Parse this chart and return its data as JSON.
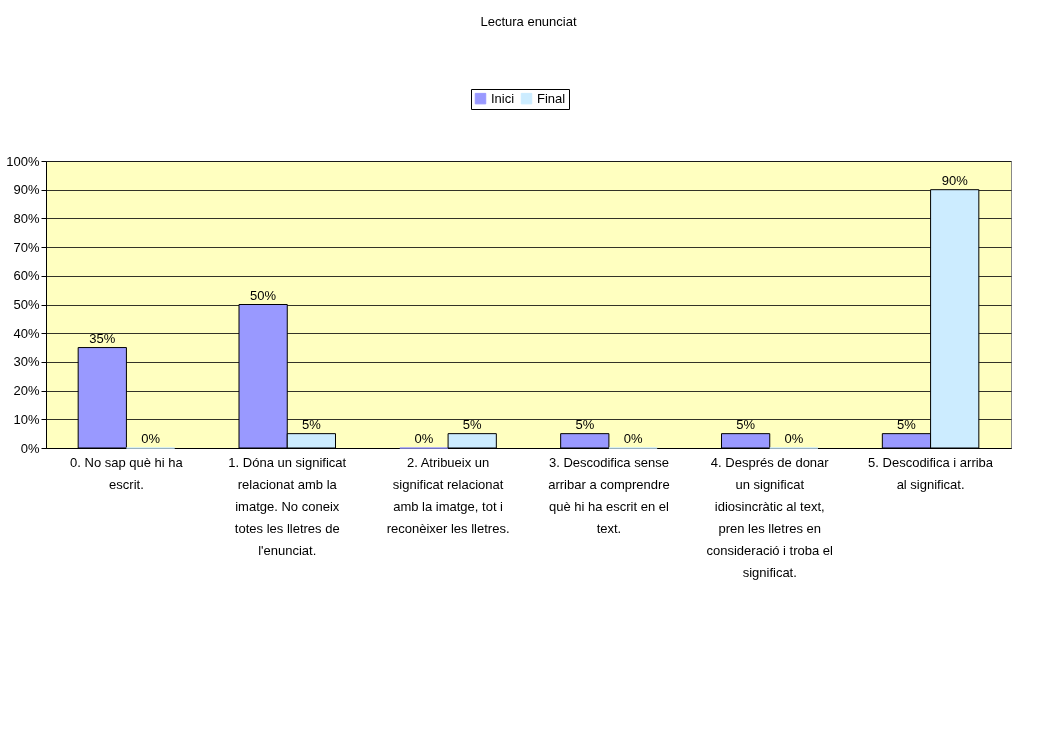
{
  "chart_data": {
    "type": "bar",
    "title": "Lectura enunciat",
    "categories": [
      "0. No sap què hi ha escrit.",
      "1. Dóna un significat relacionat amb la imatge. No coneix totes les lletres de l'enunciat.",
      "2. Atribueix un significat relacionat amb la imatge, tot i reconèixer les lletres.",
      "3. Descodifica sense arribar a comprendre què hi ha escrit en el text.",
      "4. Després de donar un significat idiosincràtic al text, pren les lletres en consideració i troba el significat.",
      "5. Descodifica i arriba al significat."
    ],
    "series": [
      {
        "name": "Inici",
        "color": "#9999ff",
        "values": [
          35,
          50,
          0,
          5,
          5,
          5
        ],
        "value_labels": [
          "35%",
          "50%",
          "0%",
          "5%",
          "5%",
          "5%"
        ]
      },
      {
        "name": "Final",
        "color": "#ccecff",
        "values": [
          0,
          5,
          5,
          0,
          0,
          90
        ],
        "value_labels": [
          "0%",
          "5%",
          "5%",
          "0%",
          "0%",
          "90%"
        ]
      }
    ],
    "ylim": [
      0,
      100
    ],
    "yticks": [
      {
        "value": 0,
        "label": "0%"
      },
      {
        "value": 10,
        "label": "10%"
      },
      {
        "value": 20,
        "label": "20%"
      },
      {
        "value": 30,
        "label": "30%"
      },
      {
        "value": 40,
        "label": "40%"
      },
      {
        "value": 50,
        "label": "50%"
      },
      {
        "value": 60,
        "label": "60%"
      },
      {
        "value": 70,
        "label": "70%"
      },
      {
        "value": 80,
        "label": "80%"
      },
      {
        "value": 90,
        "label": "90%"
      },
      {
        "value": 100,
        "label": "100%"
      }
    ],
    "grid": "y",
    "legend": "top"
  }
}
